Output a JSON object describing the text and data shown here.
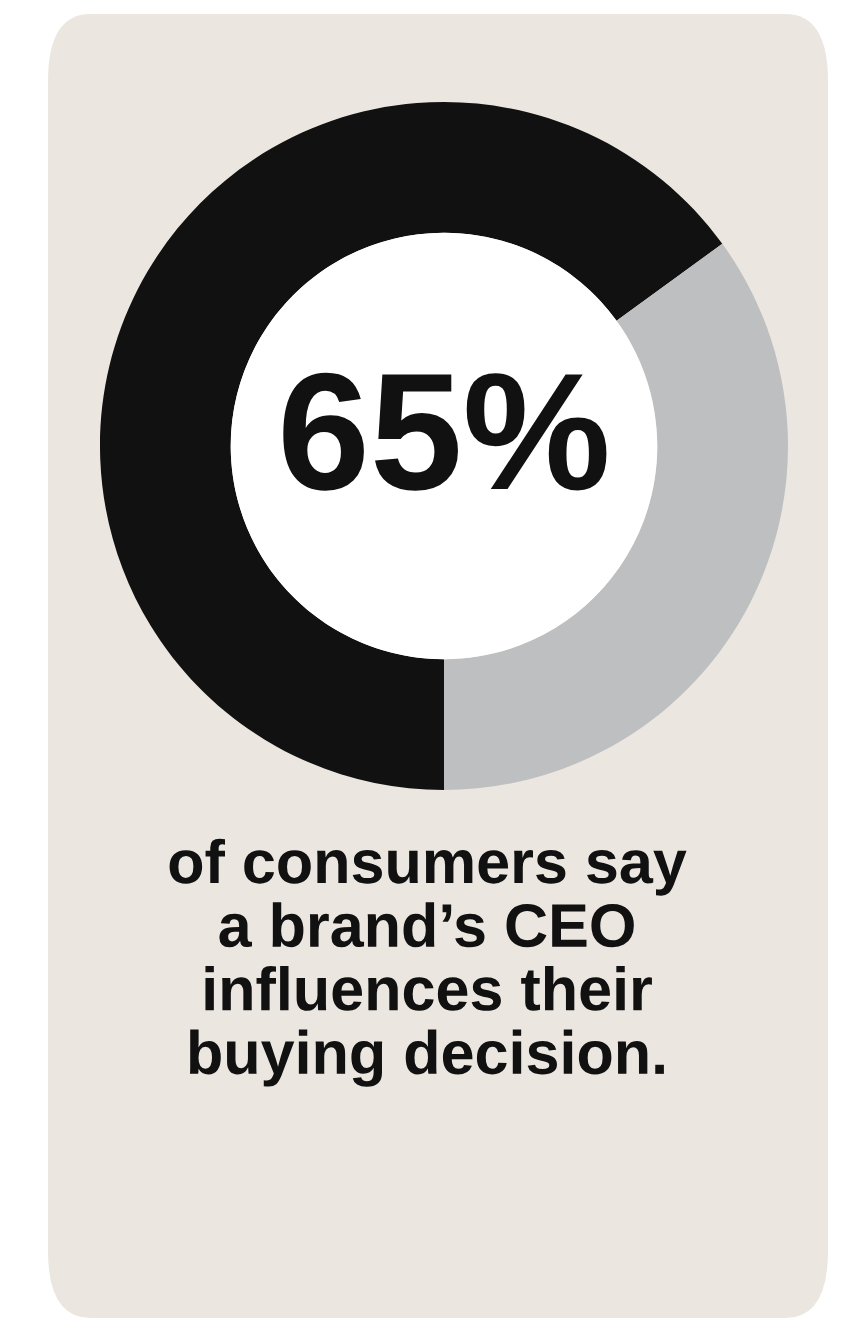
{
  "chart_data": {
    "type": "donut",
    "categories": [
      null,
      null
    ],
    "values": [
      65,
      35
    ],
    "colors": [
      "#111111",
      "#bdbfc1"
    ],
    "value_labels": [
      "65%",
      null
    ],
    "annotations": [
      "of consumers say\na brand’s CEO\ninfluences their\nbuying decision."
    ]
  }
}
